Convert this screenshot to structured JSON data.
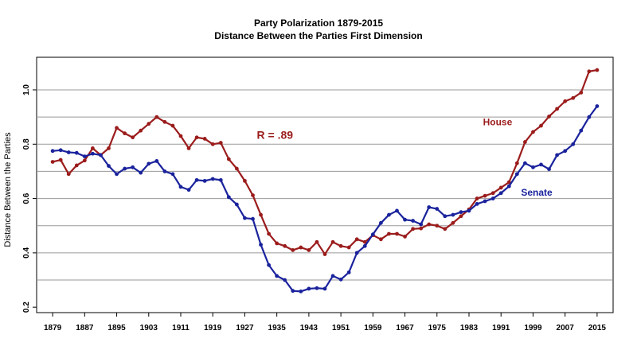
{
  "colors": {
    "house": "#9b1c1c",
    "senate": "#1a239c",
    "grid": "#9a9a9a",
    "frame": "#000000"
  },
  "chart_data": {
    "type": "line",
    "title": "Party Polarization 1879-2015",
    "subtitle": "Distance Between the Parties First Dimension",
    "xlabel": "",
    "ylabel": "Distance Between the Parties",
    "xlim": [
      1875,
      2019
    ],
    "ylim": [
      0.18,
      1.12
    ],
    "grid": "horizontal",
    "x_ticks": [
      1879,
      1887,
      1895,
      1903,
      1911,
      1919,
      1927,
      1935,
      1943,
      1951,
      1959,
      1967,
      1975,
      1983,
      1991,
      1999,
      2007,
      2015
    ],
    "y_ticks": [
      0.2,
      0.4,
      0.6,
      0.8,
      1.0
    ],
    "y_tick_labels": [
      "0.2",
      "0.4",
      "0.6",
      "0.8",
      "1.0"
    ],
    "annotation": "R = .89",
    "x": [
      1879,
      1881,
      1883,
      1885,
      1887,
      1889,
      1891,
      1893,
      1895,
      1897,
      1899,
      1901,
      1903,
      1905,
      1907,
      1909,
      1911,
      1913,
      1915,
      1917,
      1919,
      1921,
      1923,
      1925,
      1927,
      1929,
      1931,
      1933,
      1935,
      1937,
      1939,
      1941,
      1943,
      1945,
      1947,
      1949,
      1951,
      1953,
      1955,
      1957,
      1959,
      1961,
      1963,
      1965,
      1967,
      1969,
      1971,
      1973,
      1975,
      1977,
      1979,
      1981,
      1983,
      1985,
      1987,
      1989,
      1991,
      1993,
      1995,
      1997,
      1999,
      2001,
      2003,
      2005,
      2007,
      2009,
      2011,
      2013,
      2015
    ],
    "series": [
      {
        "name": "House",
        "values": [
          0.735,
          0.742,
          0.69,
          0.722,
          0.74,
          0.785,
          0.76,
          0.785,
          0.86,
          0.84,
          0.825,
          0.85,
          0.875,
          0.9,
          0.882,
          0.868,
          0.83,
          0.785,
          0.825,
          0.82,
          0.8,
          0.805,
          0.745,
          0.71,
          0.665,
          0.612,
          0.54,
          0.47,
          0.435,
          0.425,
          0.41,
          0.42,
          0.41,
          0.44,
          0.395,
          0.44,
          0.425,
          0.42,
          0.45,
          0.44,
          0.465,
          0.45,
          0.47,
          0.47,
          0.46,
          0.488,
          0.49,
          0.505,
          0.5,
          0.488,
          0.51,
          0.535,
          0.56,
          0.6,
          0.61,
          0.62,
          0.64,
          0.66,
          0.73,
          0.808,
          0.845,
          0.868,
          0.902,
          0.93,
          0.958,
          0.97,
          0.99,
          1.068,
          1.073
        ]
      },
      {
        "name": "Senate",
        "values": [
          0.775,
          0.778,
          0.77,
          0.768,
          0.755,
          0.765,
          0.76,
          0.72,
          0.69,
          0.71,
          0.715,
          0.695,
          0.728,
          0.738,
          0.7,
          0.69,
          0.643,
          0.632,
          0.668,
          0.665,
          0.672,
          0.668,
          0.605,
          0.578,
          0.528,
          0.525,
          0.43,
          0.355,
          0.315,
          0.3,
          0.26,
          0.258,
          0.268,
          0.27,
          0.268,
          0.315,
          0.302,
          0.328,
          0.4,
          0.425,
          0.468,
          0.51,
          0.54,
          0.555,
          0.522,
          0.518,
          0.505,
          0.568,
          0.562,
          0.535,
          0.54,
          0.55,
          0.555,
          0.58,
          0.59,
          0.6,
          0.62,
          0.645,
          0.69,
          0.73,
          0.715,
          0.725,
          0.708,
          0.76,
          0.775,
          0.8,
          0.85,
          0.9,
          0.94
        ]
      }
    ]
  }
}
